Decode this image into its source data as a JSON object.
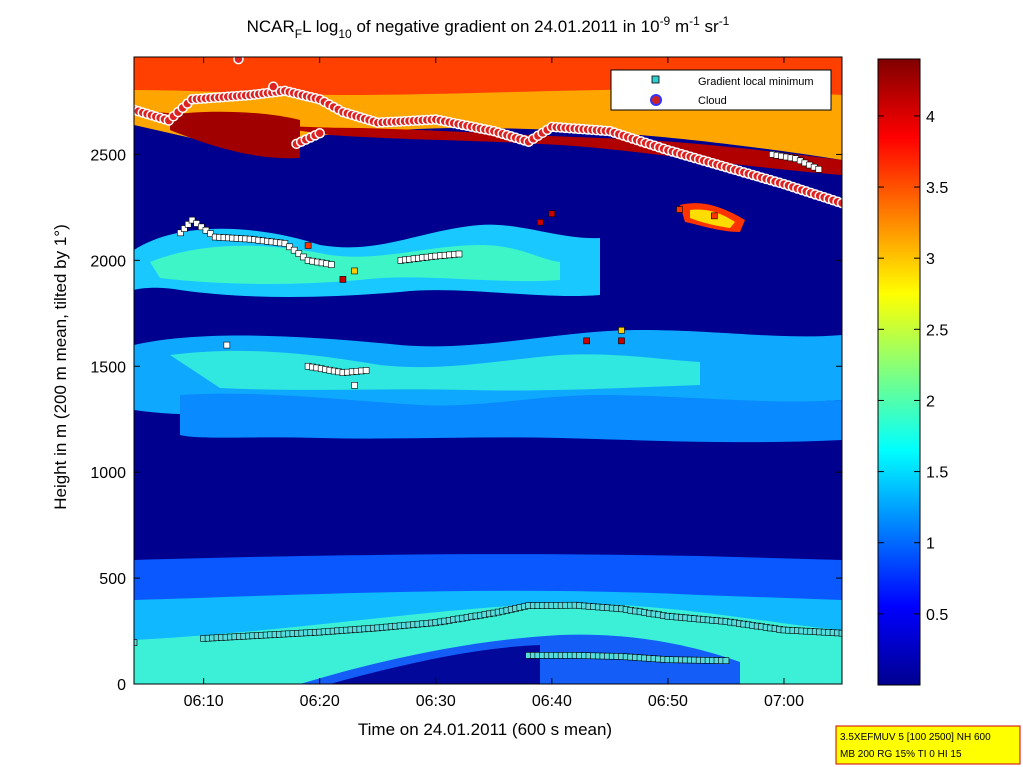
{
  "chart_data": {
    "type": "heatmap",
    "title": {
      "prefix": "NCAR",
      "sub1": "F",
      "mid": "L log",
      "sub2": "10",
      "mid2": " of negative gradient on 24.01.2011 in 10",
      "sup1": "-9",
      "mid3": " m",
      "sup2": "-1",
      "mid4": " sr",
      "sup3": "-1"
    },
    "xlabel": "Time on 24.01.2011 (600 s mean)",
    "ylabel": "Height in m (200 m mean, tilted by 1°)",
    "xlim": [
      "06:04",
      "07:05"
    ],
    "ylim": [
      0,
      2960
    ],
    "x_ticks": [
      "06:10",
      "06:20",
      "06:30",
      "06:40",
      "06:50",
      "07:00"
    ],
    "y_ticks": [
      "0",
      "500",
      "1000",
      "1500",
      "2000",
      "2500"
    ],
    "colorbar": {
      "range": [
        0,
        4.4
      ],
      "ticks": [
        "0.5",
        "1",
        "1.5",
        "2",
        "2.5",
        "3",
        "3.5",
        "4"
      ],
      "colormap": "jet"
    },
    "legend": {
      "position": "top-right",
      "entries": [
        {
          "label": "Gradient local minimum",
          "marker": "square",
          "color": "#33cccc"
        },
        {
          "label": "Cloud",
          "marker": "circle",
          "color": "#cc2222",
          "edge": "#3333ff"
        }
      ]
    },
    "series": [
      {
        "name": "Gradient local minimum",
        "points": [
          [
            "06:04",
            195
          ],
          [
            "06:10",
            215
          ],
          [
            "06:15",
            230
          ],
          [
            "06:20",
            245
          ],
          [
            "06:25",
            265
          ],
          [
            "06:30",
            290
          ],
          [
            "06:35",
            335
          ],
          [
            "06:38",
            370
          ],
          [
            "06:42",
            372
          ],
          [
            "06:46",
            355
          ],
          [
            "06:50",
            320
          ],
          [
            "06:55",
            295
          ],
          [
            "07:00",
            255
          ],
          [
            "07:05",
            240
          ],
          [
            "06:38",
            135
          ],
          [
            "06:42",
            135
          ],
          [
            "06:46",
            130
          ],
          [
            "06:50",
            115
          ],
          [
            "06:55",
            110
          ],
          [
            "06:08",
            2130
          ],
          [
            "06:09",
            2190
          ],
          [
            "06:11",
            2110
          ],
          [
            "06:14",
            2100
          ],
          [
            "06:17",
            2080
          ],
          [
            "06:19",
            2000
          ],
          [
            "06:21",
            1980
          ],
          [
            "06:27",
            2000
          ],
          [
            "06:30",
            2020
          ],
          [
            "06:32",
            2030
          ],
          [
            "06:12",
            1600
          ],
          [
            "06:19",
            1500
          ],
          [
            "06:22",
            1470
          ],
          [
            "06:24",
            1480
          ],
          [
            "06:23",
            1410
          ],
          [
            "06:59",
            2500
          ],
          [
            "07:01",
            2480
          ],
          [
            "07:03",
            2430
          ]
        ]
      },
      {
        "name": "Cloud",
        "points": [
          [
            "06:04",
            2710
          ],
          [
            "06:07",
            2660
          ],
          [
            "06:09",
            2760
          ],
          [
            "06:14",
            2780
          ],
          [
            "06:17",
            2800
          ],
          [
            "06:20",
            2760
          ],
          [
            "06:22",
            2700
          ],
          [
            "06:25",
            2650
          ],
          [
            "06:30",
            2665
          ],
          [
            "06:35",
            2610
          ],
          [
            "06:38",
            2560
          ],
          [
            "06:40",
            2630
          ],
          [
            "06:45",
            2610
          ],
          [
            "06:50",
            2520
          ],
          [
            "06:55",
            2440
          ],
          [
            "07:00",
            2360
          ],
          [
            "07:05",
            2270
          ],
          [
            "06:18",
            2550
          ],
          [
            "06:20",
            2600
          ],
          [
            "06:13",
            2950
          ],
          [
            "06:16",
            2820
          ]
        ]
      }
    ],
    "colored_markers": [
      [
        "06:19",
        2070,
        3.6
      ],
      [
        "06:22",
        1910,
        4.2
      ],
      [
        "06:23",
        1950,
        2.8
      ],
      [
        "06:39",
        2180,
        4.1
      ],
      [
        "06:40",
        2220,
        4.0
      ],
      [
        "06:43",
        1620,
        4.3
      ],
      [
        "06:46",
        1620,
        4.2
      ],
      [
        "06:46",
        1670,
        2.8
      ],
      [
        "06:51",
        2240,
        3.8
      ],
      [
        "06:54",
        2210,
        3.6
      ]
    ]
  },
  "info_box": {
    "line1": "3.5XEFMUV 5 [100 2500] NH 600",
    "line2": "MB 200 RG 15% TI 0 HI 15"
  }
}
